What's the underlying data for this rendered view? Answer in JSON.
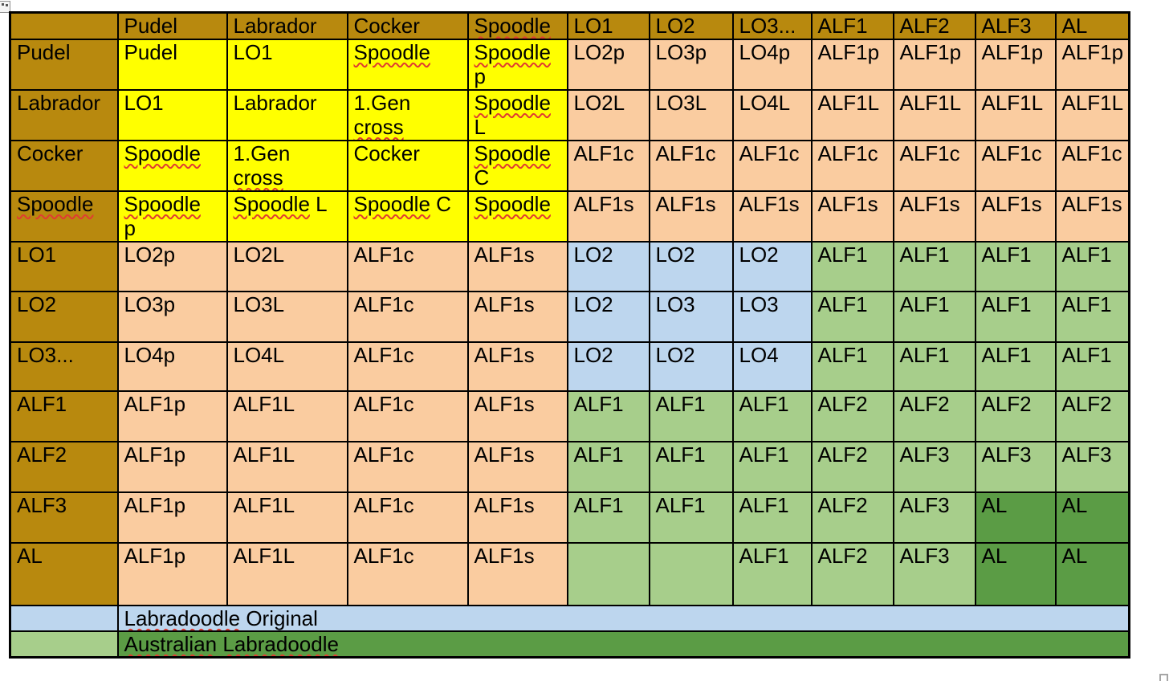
{
  "colors": {
    "header_gold": "#B8890E",
    "yellow": "#FFFF00",
    "peach": "#FACCA0",
    "blue": "#BDD6EE",
    "green": "#A7CE8B",
    "dark_green": "#5B9C45",
    "border": "#000000",
    "squiggle": "#E03C31",
    "page_background": "#FFFFFF"
  },
  "icons": {
    "top_left": "table-move-handle",
    "bottom_right": "table-resize-handle"
  },
  "table": {
    "column_headers": [
      {
        "text": ""
      },
      {
        "text": "Pudel"
      },
      {
        "text": "Labrador"
      },
      {
        "text": "Cocker"
      },
      {
        "text": "Spoodle",
        "sq": [
          "Spoodle"
        ]
      },
      {
        "text": "LO1"
      },
      {
        "text": "LO2"
      },
      {
        "text": "LO3..."
      },
      {
        "text": "ALF1"
      },
      {
        "text": "ALF2"
      },
      {
        "text": "ALF3"
      },
      {
        "text": "AL"
      }
    ],
    "rows": [
      {
        "header": {
          "text": "Pudel"
        },
        "cells": [
          {
            "text": "Pudel",
            "color": "yellow"
          },
          {
            "text": "LO1",
            "color": "yellow"
          },
          {
            "text": "Spoodle",
            "color": "yellow",
            "sq": [
              "Spoodle"
            ]
          },
          {
            "text": "Spoodle\np",
            "color": "yellow",
            "sq": [
              "Spoodle"
            ]
          },
          {
            "text": "LO2p",
            "color": "peach"
          },
          {
            "text": "LO3p",
            "color": "peach"
          },
          {
            "text": "LO4p",
            "color": "peach"
          },
          {
            "text": "ALF1p",
            "color": "peach"
          },
          {
            "text": "ALF1p",
            "color": "peach"
          },
          {
            "text": "ALF1p",
            "color": "peach"
          },
          {
            "text": "ALF1p",
            "color": "peach"
          }
        ]
      },
      {
        "header": {
          "text": "Labrador"
        },
        "cells": [
          {
            "text": "LO1",
            "color": "yellow"
          },
          {
            "text": "Labrador",
            "color": "yellow"
          },
          {
            "text": "1.Gen\ncross",
            "color": "yellow",
            "align": "center",
            "sq": [
              "cross"
            ]
          },
          {
            "text": "Spoodle\nL",
            "color": "yellow",
            "sq": [
              "Spoodle"
            ]
          },
          {
            "text": "LO2L",
            "color": "peach"
          },
          {
            "text": "LO3L",
            "color": "peach"
          },
          {
            "text": "LO4L",
            "color": "peach"
          },
          {
            "text": "ALF1L",
            "color": "peach"
          },
          {
            "text": "ALF1L",
            "color": "peach"
          },
          {
            "text": "ALF1L",
            "color": "peach"
          },
          {
            "text": "ALF1L",
            "color": "peach"
          }
        ]
      },
      {
        "header": {
          "text": "Cocker"
        },
        "cells": [
          {
            "text": "Spoodle",
            "color": "yellow",
            "sq": [
              "Spoodle"
            ]
          },
          {
            "text": "1.Gen\ncross",
            "color": "yellow",
            "align": "center",
            "sq": [
              "cross"
            ]
          },
          {
            "text": "Cocker",
            "color": "yellow"
          },
          {
            "text": "Spoodle\nC",
            "color": "yellow",
            "sq": [
              "Spoodle"
            ]
          },
          {
            "text": "ALF1c",
            "color": "peach"
          },
          {
            "text": "ALF1c",
            "color": "peach"
          },
          {
            "text": "ALF1c",
            "color": "peach"
          },
          {
            "text": "ALF1c",
            "color": "peach"
          },
          {
            "text": "ALF1c",
            "color": "peach"
          },
          {
            "text": "ALF1c",
            "color": "peach"
          },
          {
            "text": "ALF1c",
            "color": "peach"
          }
        ]
      },
      {
        "header": {
          "text": "Spoodle",
          "sq": [
            "Spoodle"
          ]
        },
        "cells": [
          {
            "text": "Spoodle\np",
            "color": "yellow",
            "sq": [
              "Spoodle"
            ]
          },
          {
            "text": "Spoodle L",
            "color": "yellow",
            "sq": [
              "Spoodle"
            ]
          },
          {
            "text": "Spoodle C",
            "color": "yellow",
            "sq": [
              "Spoodle"
            ]
          },
          {
            "text": "Spoodle",
            "color": "yellow",
            "sq": [
              "Spoodle"
            ]
          },
          {
            "text": "ALF1s",
            "color": "peach"
          },
          {
            "text": "ALF1s",
            "color": "peach"
          },
          {
            "text": "ALF1s",
            "color": "peach"
          },
          {
            "text": "ALF1s",
            "color": "peach"
          },
          {
            "text": "ALF1s",
            "color": "peach"
          },
          {
            "text": "ALF1s",
            "color": "peach"
          },
          {
            "text": "ALF1s",
            "color": "peach"
          }
        ]
      },
      {
        "header": {
          "text": "LO1"
        },
        "cells": [
          {
            "text": "LO2p",
            "color": "peach"
          },
          {
            "text": "LO2L",
            "color": "peach"
          },
          {
            "text": "ALF1c",
            "color": "peach"
          },
          {
            "text": "ALF1s",
            "color": "peach"
          },
          {
            "text": "LO2",
            "color": "blue"
          },
          {
            "text": "LO2",
            "color": "blue"
          },
          {
            "text": "LO2",
            "color": "blue"
          },
          {
            "text": "ALF1",
            "color": "green"
          },
          {
            "text": "ALF1",
            "color": "green"
          },
          {
            "text": "ALF1",
            "color": "green"
          },
          {
            "text": "ALF1",
            "color": "green"
          }
        ]
      },
      {
        "header": {
          "text": "LO2"
        },
        "cells": [
          {
            "text": "LO3p",
            "color": "peach"
          },
          {
            "text": "LO3L",
            "color": "peach"
          },
          {
            "text": "ALF1c",
            "color": "peach"
          },
          {
            "text": "ALF1s",
            "color": "peach"
          },
          {
            "text": "LO2",
            "color": "blue"
          },
          {
            "text": "LO3",
            "color": "blue"
          },
          {
            "text": "LO3",
            "color": "blue"
          },
          {
            "text": "ALF1",
            "color": "green"
          },
          {
            "text": "ALF1",
            "color": "green"
          },
          {
            "text": "ALF1",
            "color": "green"
          },
          {
            "text": "ALF1",
            "color": "green"
          }
        ]
      },
      {
        "header": {
          "text": "LO3..."
        },
        "cells": [
          {
            "text": "LO4p",
            "color": "peach"
          },
          {
            "text": "LO4L",
            "color": "peach"
          },
          {
            "text": "ALF1c",
            "color": "peach"
          },
          {
            "text": "ALF1s",
            "color": "peach"
          },
          {
            "text": "LO2",
            "color": "blue"
          },
          {
            "text": "LO2",
            "color": "blue"
          },
          {
            "text": "LO4",
            "color": "blue"
          },
          {
            "text": "ALF1",
            "color": "green"
          },
          {
            "text": "ALF1",
            "color": "green"
          },
          {
            "text": "ALF1",
            "color": "green"
          },
          {
            "text": "ALF1",
            "color": "green"
          }
        ]
      },
      {
        "header": {
          "text": "ALF1"
        },
        "cells": [
          {
            "text": "ALF1p",
            "color": "peach"
          },
          {
            "text": "ALF1L",
            "color": "peach"
          },
          {
            "text": "ALF1c",
            "color": "peach"
          },
          {
            "text": "ALF1s",
            "color": "peach"
          },
          {
            "text": "ALF1",
            "color": "green"
          },
          {
            "text": "ALF1",
            "color": "green"
          },
          {
            "text": "ALF1",
            "color": "green"
          },
          {
            "text": "ALF2",
            "color": "green"
          },
          {
            "text": "ALF2",
            "color": "green"
          },
          {
            "text": "ALF2",
            "color": "green"
          },
          {
            "text": "ALF2",
            "color": "green"
          }
        ]
      },
      {
        "header": {
          "text": "ALF2"
        },
        "cells": [
          {
            "text": "ALF1p",
            "color": "peach"
          },
          {
            "text": "ALF1L",
            "color": "peach"
          },
          {
            "text": "ALF1c",
            "color": "peach"
          },
          {
            "text": "ALF1s",
            "color": "peach"
          },
          {
            "text": "ALF1",
            "color": "green"
          },
          {
            "text": "ALF1",
            "color": "green"
          },
          {
            "text": "ALF1",
            "color": "green"
          },
          {
            "text": "ALF2",
            "color": "green"
          },
          {
            "text": "ALF3",
            "color": "green"
          },
          {
            "text": "ALF3",
            "color": "green"
          },
          {
            "text": "ALF3",
            "color": "green"
          }
        ]
      },
      {
        "header": {
          "text": "ALF3"
        },
        "cells": [
          {
            "text": "ALF1p",
            "color": "peach"
          },
          {
            "text": "ALF1L",
            "color": "peach"
          },
          {
            "text": "ALF1c",
            "color": "peach"
          },
          {
            "text": "ALF1s",
            "color": "peach"
          },
          {
            "text": "ALF1",
            "color": "green"
          },
          {
            "text": "ALF1",
            "color": "green"
          },
          {
            "text": "ALF1",
            "color": "green"
          },
          {
            "text": "ALF2",
            "color": "green"
          },
          {
            "text": "ALF3",
            "color": "green"
          },
          {
            "text": "AL",
            "color": "dark_green"
          },
          {
            "text": "AL",
            "color": "dark_green"
          }
        ]
      },
      {
        "header": {
          "text": "AL"
        },
        "cells": [
          {
            "text": "ALF1p",
            "color": "peach"
          },
          {
            "text": "ALF1L",
            "color": "peach"
          },
          {
            "text": "ALF1c",
            "color": "peach"
          },
          {
            "text": "ALF1s",
            "color": "peach"
          },
          {
            "text": "",
            "color": "green"
          },
          {
            "text": "",
            "color": "green"
          },
          {
            "text": "ALF1",
            "color": "green"
          },
          {
            "text": "ALF2",
            "color": "green"
          },
          {
            "text": "ALF3",
            "color": "green"
          },
          {
            "text": "AL",
            "color": "dark_green"
          },
          {
            "text": "AL",
            "color": "dark_green"
          }
        ]
      }
    ],
    "legend": [
      {
        "swatch_color": "blue",
        "row_color": "blue",
        "label": "Labradoodle Original",
        "sq": [
          "Labradoodle"
        ]
      },
      {
        "swatch_color": "green",
        "row_color": "dark_green",
        "label": "Australian Labradoodle",
        "sq": [
          "Australian",
          "Labradoodle"
        ]
      }
    ]
  }
}
